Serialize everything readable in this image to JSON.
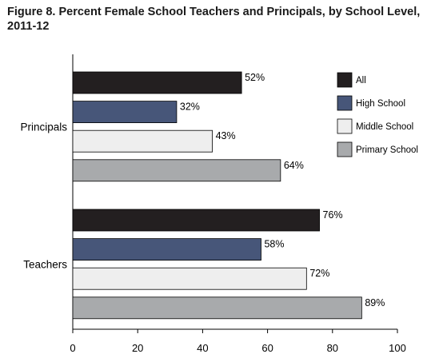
{
  "figure": {
    "title": "Figure 8. Percent Female School Teachers and Principals, by School Level, 2011-12"
  },
  "chart_data": {
    "type": "bar",
    "orientation": "horizontal",
    "title": "Figure 8. Percent Female School Teachers and Principals, by School Level, 2011-12",
    "categories": [
      "Principals",
      "Teachers"
    ],
    "series": [
      {
        "name": "All",
        "values": [
          52,
          76
        ],
        "color": "#231f20"
      },
      {
        "name": "High School",
        "values": [
          32,
          58
        ],
        "color": "#475679"
      },
      {
        "name": "Middle School",
        "values": [
          43,
          72
        ],
        "color": "#eeeeee"
      },
      {
        "name": "Primary School",
        "values": [
          64,
          89
        ],
        "color": "#a8aaac"
      }
    ],
    "value_labels": [
      [
        "52%",
        "76%"
      ],
      [
        "32%",
        "58%"
      ],
      [
        "43%",
        "72%"
      ],
      [
        "64%",
        "89%"
      ]
    ],
    "xlim": [
      0,
      100
    ],
    "xticks": [
      "0",
      "20",
      "40",
      "60",
      "80",
      "100"
    ],
    "xlabel": "",
    "ylabel": "",
    "grid": false,
    "legend_position": "top-right"
  }
}
